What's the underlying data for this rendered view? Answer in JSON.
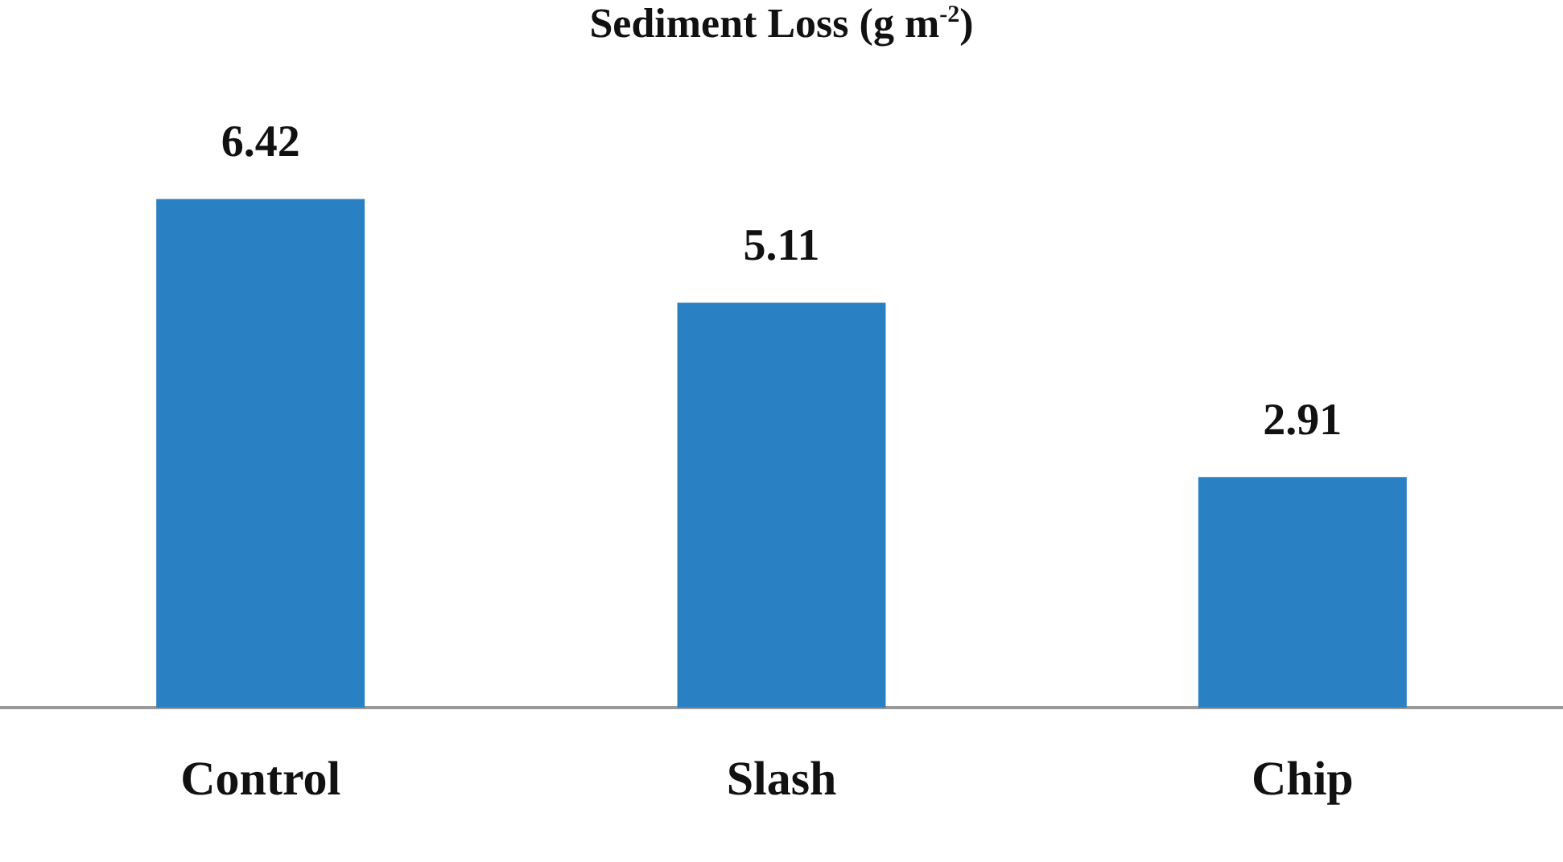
{
  "chart_data": {
    "type": "bar",
    "title": "Sediment Loss (g m$^{-2}$)",
    "categories": [
      "Control",
      "Slash",
      "Chip"
    ],
    "values": [
      6.42,
      5.11,
      2.91
    ],
    "color": "#2980c2",
    "data_labels": true,
    "grid": false,
    "legend": false,
    "tick_labels": "x"
  }
}
